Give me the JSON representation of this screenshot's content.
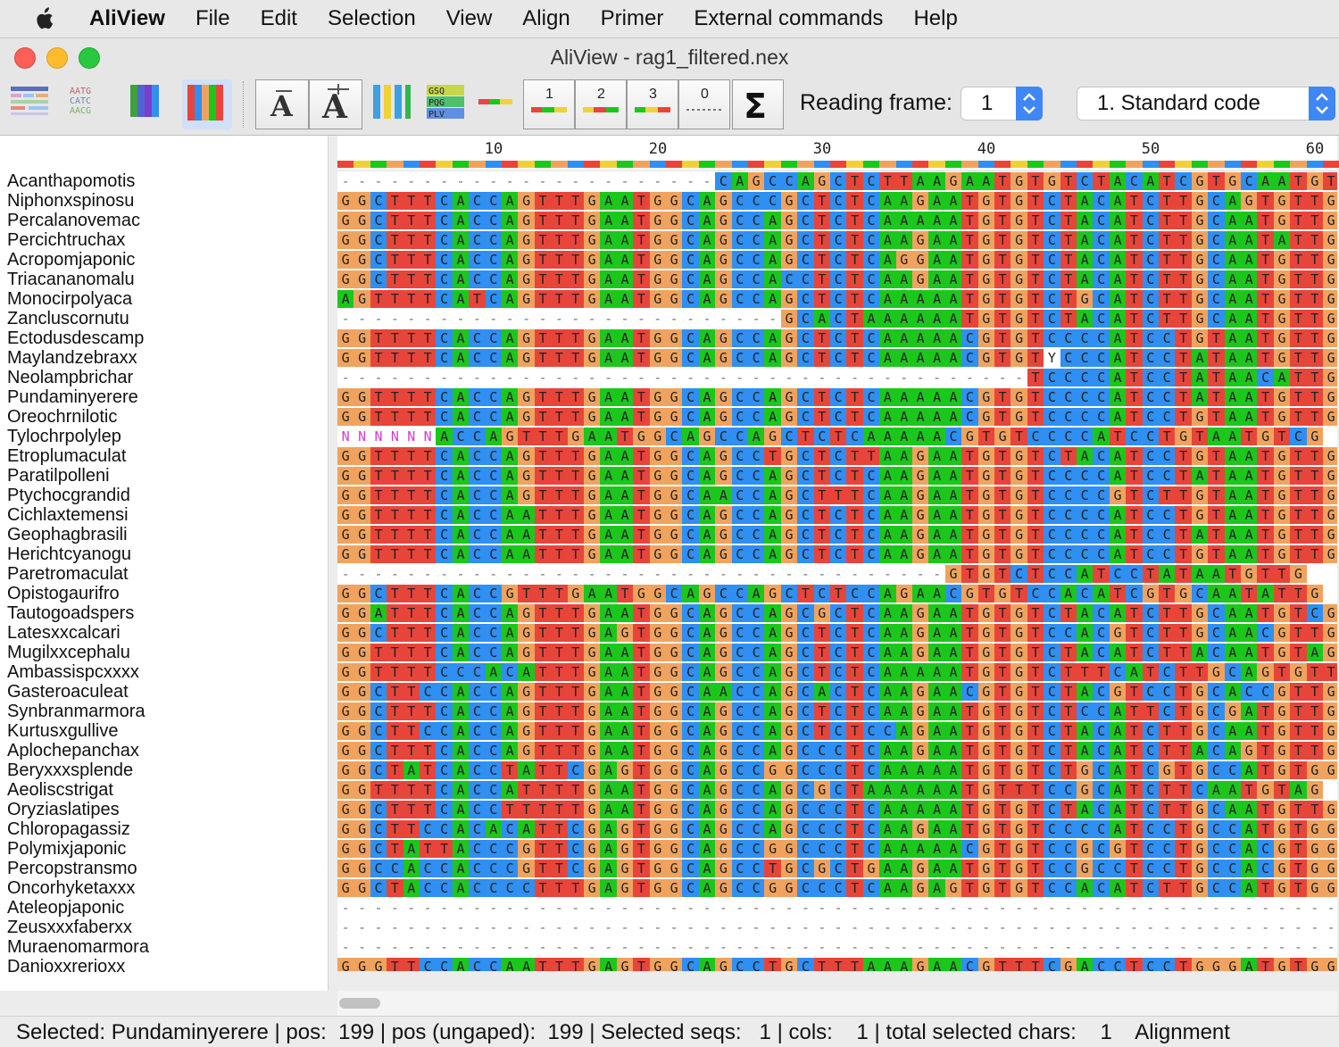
{
  "menubar": {
    "app_name": "AliView",
    "items": [
      "File",
      "Edit",
      "Selection",
      "View",
      "Align",
      "Primer",
      "External commands",
      "Help"
    ]
  },
  "window": {
    "title": "AliView - rag1_filtered.nex"
  },
  "toolbar": {
    "icons": [
      "highlight-consensus-icon",
      "translation-text-icon",
      "color-by-nucleotide-icon",
      "color-translation-icon",
      "font-decrease-icon",
      "font-increase-icon",
      "ruler-icon",
      "translate-amino-icon",
      "codon-frame-icon",
      "codon-position-1-icon",
      "codon-position-2-icon",
      "codon-position-3-icon",
      "codon-position-0-icon",
      "sigma-sum-icon"
    ],
    "codon_labels": [
      "1",
      "2",
      "3",
      "0"
    ],
    "reading_frame_label": "Reading frame:",
    "reading_frame_value": "1",
    "genetic_code_value": "1. Standard code"
  },
  "ruler": {
    "ticks": [
      "10",
      "20",
      "30",
      "40",
      "50",
      "60"
    ]
  },
  "sequences": [
    {
      "name": "Acanthapomotis",
      "seq": "-----------------------CAGCCAGCTCTTAAGAATGTGTCTACATCGTGCAATGTTG"
    },
    {
      "name": "Niphonxspinosu",
      "seq": "GGCTTTCACCAGTTTGAATGGCAGCCCGCTCTCAAGAATGTGTCTACATCTTGCAGTGTTG"
    },
    {
      "name": "Percalanovemac",
      "seq": "GGCTTTCACCAGTTTGAATGGCAGCCAGCTCTCAAAAATGTGTCTACATCTTGCAATGTTG"
    },
    {
      "name": "Percichtruchax",
      "seq": "GGCTTTCACCAGTTTGAATGGCAGCCAGCTCTCAAGAATGTGTCTACATCTTGCAATATTG"
    },
    {
      "name": "Acropomjaponic",
      "seq": "GGCTTTCACCAGTTTGAATGGCAGCCAGCTCTCAGGAATGTGTCTACATCTTGCAATGTTG"
    },
    {
      "name": "Triacananomalu",
      "seq": "GGCTTTCACCAGTTTGAATGGCAGCCACCTCTCAAGAATGTGTCTACATCTTGCAATGTTG"
    },
    {
      "name": "Monocirpolyaca",
      "seq": "AGTTTTCATCAGTTTGAATGGCAGCCAGCTCTCAAAAATGTGTCTGCATCTTGCAATGTTG"
    },
    {
      "name": "Zancluscornutu",
      "seq": "---------------------------GCACTAAAAAATGTGTCTACATCTTGCAATGTTG"
    },
    {
      "name": "Ectodusdescamp",
      "seq": "GGTTTTCACCAGTTTGAATGGCAGCCAGCTCTCAAAAACGTGTCCCCATCCTGTAATGTTG"
    },
    {
      "name": "Maylandzebraxx",
      "seq": "GGTTTTCACCAGTTTGAATGGCAGCCAGCTCTCAAAAACGTGTYCCCATCCTATAATGTTG"
    },
    {
      "name": "Neolampbrichar",
      "seq": "------------------------------------------TCCCCATCCTATAACATTG"
    },
    {
      "name": "Pundaminyerere",
      "seq": "GGTTTTCACCAGTTTGAATGGCAGCCAGCTCTCAAAAACGTGTCCCCATCCTATAATGTTG"
    },
    {
      "name": "Oreochrnilotic",
      "seq": "GGTTTTCACCAGTTTGAATGGCAGCCAGCTCTCAAAAACGTGTCCCCATCCTGTAATGTTG"
    },
    {
      "name": "Tylochrpolylep",
      "seq": "NNNNNNACCAGTTTGAATGGCAGCCAGCTCTCAAAAACGTGTCCCCATCCTGTAATGTCG"
    },
    {
      "name": "Etroplumaculat",
      "seq": "GGTTTTCACCAGTTTGAATGGCAGCCTGCTCTTAAGAATGTGTCTACATCCTGTAATGTTG"
    },
    {
      "name": "Paratilpolleni",
      "seq": "GGTTTTCACCAGTTTGAATGGCAGCCAGCTCTCAAGAATGTGTCCCCATCCTATAATGTTG"
    },
    {
      "name": "Ptychocgrandid",
      "seq": "GGTTTTCACCAGTTTGAATGGCAACCAGCTTTCAAGAATGTGTCCCCGTCTTGTAATGTTG"
    },
    {
      "name": "Cichlaxtemensi",
      "seq": "GGTTTTCACCAATTTGAATGGCAGCCAGCTCTCAAGAATGTGTCCCCATCCTGTAATGTTG"
    },
    {
      "name": "Geophagbrasili",
      "seq": "GGTTTTCACCAATTTGAATGGCAGCCAGCTCTCAAGAATGTGTCCCCATCCTATAATGTTG"
    },
    {
      "name": "Herichtcyanogu",
      "seq": "GGTTTTCACCAATTTGAATGGCAGCCAGCTCTCAAGAATGTGTCCCCATCCTGTAATGTTG"
    },
    {
      "name": "Paretromaculat",
      "seq": "-------------------------------------GTGTCTCCATCCTATAATGTTG"
    },
    {
      "name": "Opistogaurifro",
      "seq": "GGCTTTCACCGTTTGAATGGCAGCCAGCTCTCCAGAACGTGTCCACATCGTGCAATATTG"
    },
    {
      "name": "Tautogoadspers",
      "seq": "GGATTTCACCAGTTTGAATGGCAGCCAGCGCTCAAGAATGTGTCTACATCTTGCAATGTCG"
    },
    {
      "name": "Latesxxcalcari",
      "seq": "GGCTTTCACCAGTTTGAGTGGCAGCCAGCTCTCAAGAATGTGTCCACGTCTTGCAACGTTG"
    },
    {
      "name": "Mugilxxcephalu",
      "seq": "GGTTTTCACCAGTTTGAATGGCAGCCAGCTCTCAAGAATGTGTCTACATCTTACAATGTAG"
    },
    {
      "name": "Ambassispcxxxx",
      "seq": "GGTTTTCCCACATTTGAATGGCAGCCAGCTCTCAAAAATGTGTCTTTCATCTTGCAGTGTTG"
    },
    {
      "name": "Gasteroaculeat",
      "seq": "GGCTTCCACCAGTTTGAATGGCAACCAGCACTCAAGAACGTGTCTACGTCCTGCACCGTTG"
    },
    {
      "name": "Synbranmarmora",
      "seq": "GGCTTTCACCAGTTTGAATGGCAGCCAGCTCTCAAGAATGTGTCTCCATTCTGCGATGTTG"
    },
    {
      "name": "Kurtusxgullive",
      "seq": "GGCTTCCACCAGTTTGAATGGCAGCCAGCTCTCCAGAATGTGTCTACATCTTGCAATGTTG"
    },
    {
      "name": "Aplochepanchax",
      "seq": "GGCTTTCACCAGTTTGAATGGCAGCCAGCCCTCAAGAATGTGTCTACATCTTACAGTGTTG"
    },
    {
      "name": "Beryxxxsplende",
      "seq": "GGCTATCACCTATTCGAGTGGCAGCCGGCCCTCAAAAATGTGTCTGCATCGTGCCATGTGG"
    },
    {
      "name": "Aeoliscstrigat",
      "seq": "GGTTTTCACCATTTTGAATGGCAGCCAGCGCTAAAAAATGTTTCCGCATCTTCAATGTAG"
    },
    {
      "name": "Oryziaslatipes",
      "seq": "GGCTTTCACCTTTTTGAATGGCAGCCAGCCCTCAAAAATGTGTCTACATCTTGCAATGTTG"
    },
    {
      "name": "Chloropagassiz",
      "seq": "GGCTTCCACACATTCGAGTGGCAGCCAGCCCTCAAGAATGTGTCCCCATCCTGCCATGTGG"
    },
    {
      "name": "Polymixjaponic",
      "seq": "GGCTATTACCCGTTCGAGTGGCAGCCGGCCCTCAAAAACGTGTCCGCGTCCTGCCACGTGG"
    },
    {
      "name": "Percopstransmo",
      "seq": "GGCCACCACCCGTTCGAGTGGCAGCCTGCGCTGAAGAATGTGTCCGCCTCCTGCCACGTGG"
    },
    {
      "name": "Oncorhyketaxxx",
      "seq": "GGCTACCACCCCTTTGAGTGGCAGCCGGCCCTCAAGAGTGTGTCCACATCTTGCCATGTGG"
    },
    {
      "name": "Ateleopjaponic",
      "seq": "--------------------------------------------------------------"
    },
    {
      "name": "Zeusxxxfaberxx",
      "seq": "--------------------------------------------------------------"
    },
    {
      "name": "Muraenomarmora",
      "seq": "--------------------------------------------------------------"
    },
    {
      "name": "Danioxxrerioxx",
      "seq": "GGGTTCCACCAATTTGAGTGGCAGCCTGCTTTAAAGAACGTTTCGACCTCCTGGGATGTGG"
    }
  ],
  "nucleotide_colors": {
    "A": "#1cc71c",
    "C": "#2f8ff2",
    "G": "#f0a35e",
    "T": "#e8453a",
    "gap": "#ffffff",
    "N": "#ffffff"
  },
  "status": {
    "text": "Selected: Pundaminyerere | pos:  199 | pos (ungaped):  199 | Selected seqs:   1 | cols:    1 | total selected chars:    1    Alignment"
  }
}
